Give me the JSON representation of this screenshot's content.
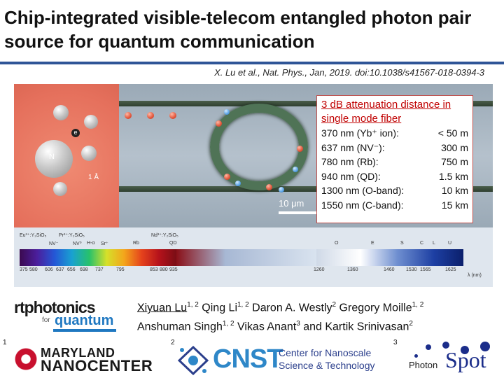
{
  "slide": {
    "title": "Chip-integrated visible-telecom entangled photon pair source for quantum communication",
    "citation": "X. Lu et al., Nat. Phys., Jan, 2019. doi:10.1038/s41567-018-0394-3"
  },
  "figure": {
    "scale_bar": "10 μm",
    "atom_labels": {
      "n": "N",
      "e": "e",
      "angstrom": "1 Å"
    },
    "emitters": [
      "Eu³⁺:Y₂SiO₅",
      "Pr³⁺:Y₂SiO₅",
      "NV⁻",
      "NV⁰",
      "H-α",
      "Sr⁺",
      "Rb",
      "Nd³⁺:Y₂SiO₅",
      "QD"
    ],
    "visible_ticks": [
      "375",
      "580",
      "606",
      "637",
      "656",
      "698",
      "737",
      "795",
      "853",
      "880",
      "935"
    ],
    "telecom_bands": [
      "O",
      "E",
      "S",
      "C",
      "L",
      "U"
    ],
    "telecom_ticks": [
      "1260",
      "1360",
      "1460",
      "1530",
      "1565",
      "1625"
    ],
    "axis_label": "λ (nm)",
    "info_box": {
      "heading": "3 dB attenuation distance in single mode fiber",
      "rows": [
        {
          "wavelength": "370 nm (Yb⁺ ion):",
          "distance": "< 50 m"
        },
        {
          "wavelength": "637 nm (NV⁻):",
          "distance": "300 m"
        },
        {
          "wavelength": "780 nm (Rb):",
          "distance": "750 m"
        },
        {
          "wavelength": "940 nm (QD):",
          "distance": "1.5 km"
        },
        {
          "wavelength": "1300 nm (O-band):",
          "distance": "10 km"
        },
        {
          "wavelength": "1550 nm (C-band):",
          "distance": "15 km"
        }
      ]
    }
  },
  "authors": {
    "line1": [
      {
        "name": "Xiyuan Lu",
        "aff": "1, 2",
        "underline": true
      },
      {
        "name": " Qing Li",
        "aff": "1, 2",
        "underline": false
      },
      {
        "name": " Daron A. Westly",
        "aff": "2",
        "underline": false
      },
      {
        "name": " Gregory Moille",
        "aff": "1, 2",
        "underline": false
      }
    ],
    "line2": [
      {
        "name": "Anshuman Singh",
        "aff": "1, 2",
        "underline": false
      },
      {
        "name": " Vikas Anant",
        "aff": "3",
        "underline": false
      },
      {
        "name": " and Kartik Srinivasan",
        "aff": "2",
        "underline": false
      }
    ]
  },
  "logos": {
    "rt": {
      "line1": "rtphotonics",
      "for": "for",
      "quantum": "quantum"
    },
    "maryland": {
      "num": "1",
      "line1": "MARYLAND",
      "line2": "NANOCENTER"
    },
    "cnst": {
      "num": "2",
      "name": "CNST",
      "sub1": "Center for Nanoscale",
      "sub2": "Science & Technology"
    },
    "photonspot": {
      "num": "3",
      "photon": "Photon",
      "spot": "Spot"
    }
  },
  "colors": {
    "title_rule": "#2f5597",
    "info_heading": "#c00000",
    "info_border": "#c0504d",
    "cnst_blue": "#2e87c8",
    "maryland_red": "#c8102e",
    "photonspot_blue": "#1b2d8a"
  }
}
